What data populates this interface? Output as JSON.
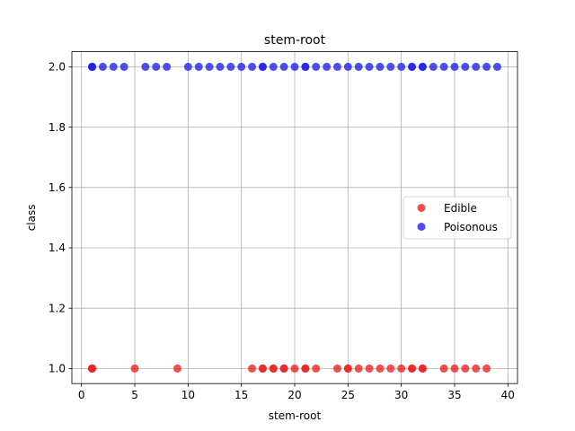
{
  "chart_data": {
    "type": "scatter",
    "title": "stem-root",
    "xlabel": "stem-root",
    "ylabel": "class",
    "xlim": [
      -0.9,
      40.9
    ],
    "ylim": [
      0.95,
      2.05
    ],
    "xticks": [
      0,
      5,
      10,
      15,
      20,
      25,
      30,
      35,
      40
    ],
    "yticks": [
      1.0,
      1.2,
      1.4,
      1.6,
      1.8,
      2.0
    ],
    "ytick_labels": [
      "1.0",
      "1.2",
      "1.4",
      "1.6",
      "1.8",
      "2.0"
    ],
    "grid": true,
    "legend_position": "center-right",
    "series": [
      {
        "name": "Edible",
        "color": "#ee2222",
        "points": [
          [
            1,
            1
          ],
          [
            1,
            1
          ],
          [
            1,
            1
          ],
          [
            5,
            1
          ],
          [
            9,
            1
          ],
          [
            16,
            1
          ],
          [
            17,
            1
          ],
          [
            17,
            1
          ],
          [
            18,
            1
          ],
          [
            18,
            1
          ],
          [
            19,
            1
          ],
          [
            19,
            1
          ],
          [
            20,
            1
          ],
          [
            21,
            1
          ],
          [
            21,
            1
          ],
          [
            22,
            1
          ],
          [
            24,
            1
          ],
          [
            25,
            1
          ],
          [
            25,
            1
          ],
          [
            26,
            1
          ],
          [
            27,
            1
          ],
          [
            28,
            1
          ],
          [
            29,
            1
          ],
          [
            30,
            1
          ],
          [
            31,
            1
          ],
          [
            31,
            1
          ],
          [
            32,
            1
          ],
          [
            32,
            1
          ],
          [
            34,
            1
          ],
          [
            35,
            1
          ],
          [
            36,
            1
          ],
          [
            37,
            1
          ],
          [
            38,
            1
          ]
        ]
      },
      {
        "name": "Poisonous",
        "color": "#2222ee",
        "points": [
          [
            1,
            2
          ],
          [
            1,
            2
          ],
          [
            1,
            2
          ],
          [
            2,
            2
          ],
          [
            3,
            2
          ],
          [
            4,
            2
          ],
          [
            6,
            2
          ],
          [
            7,
            2
          ],
          [
            8,
            2
          ],
          [
            10,
            2
          ],
          [
            11,
            2
          ],
          [
            12,
            2
          ],
          [
            13,
            2
          ],
          [
            14,
            2
          ],
          [
            15,
            2
          ],
          [
            16,
            2
          ],
          [
            17,
            2
          ],
          [
            17,
            2
          ],
          [
            18,
            2
          ],
          [
            19,
            2
          ],
          [
            20,
            2
          ],
          [
            21,
            2
          ],
          [
            21,
            2
          ],
          [
            22,
            2
          ],
          [
            23,
            2
          ],
          [
            24,
            2
          ],
          [
            25,
            2
          ],
          [
            26,
            2
          ],
          [
            27,
            2
          ],
          [
            28,
            2
          ],
          [
            29,
            2
          ],
          [
            30,
            2
          ],
          [
            31,
            2
          ],
          [
            31,
            2
          ],
          [
            32,
            2
          ],
          [
            32,
            2
          ],
          [
            33,
            2
          ],
          [
            34,
            2
          ],
          [
            35,
            2
          ],
          [
            36,
            2
          ],
          [
            37,
            2
          ],
          [
            38,
            2
          ],
          [
            39,
            2
          ]
        ]
      }
    ]
  }
}
